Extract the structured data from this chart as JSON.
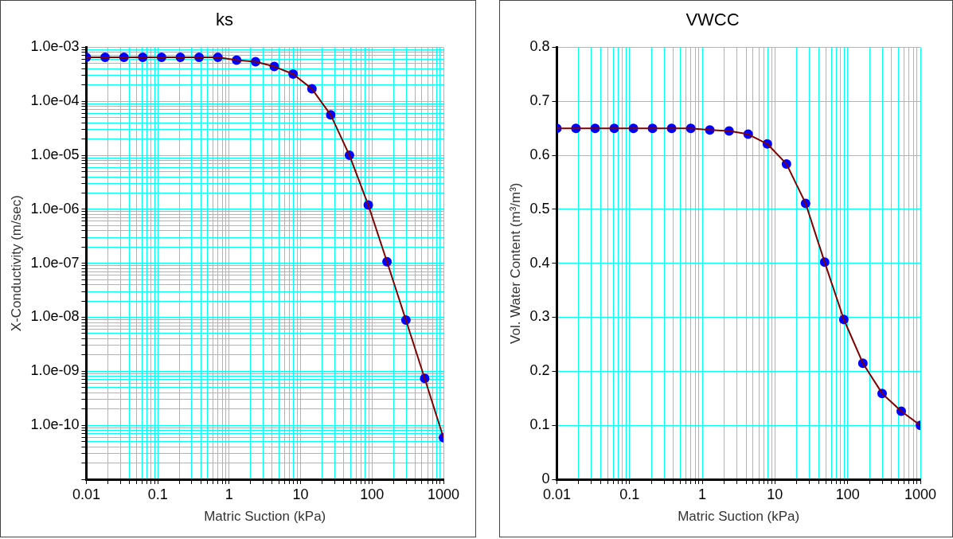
{
  "chart_data": [
    {
      "type": "line",
      "title": "ks",
      "xlabel": "Matric Suction (kPa)",
      "ylabel": "X-Conductivity (m/sec)",
      "log": "xy",
      "grid": true,
      "legend": false,
      "line_style": "solid",
      "xlim": [
        0.01,
        1000
      ],
      "ylim": [
        1e-11,
        0.001
      ],
      "xticks": [
        0.01,
        {
          "value": 0.02,
          "label": null
        },
        {
          "value": 0.03,
          "label": null
        },
        {
          "value": 0.04,
          "label": null
        },
        {
          "value": 0.05,
          "label": null
        },
        {
          "value": 0.06,
          "label": null
        },
        {
          "value": 0.07,
          "label": null
        },
        {
          "value": 0.08,
          "label": null
        },
        {
          "value": 0.09,
          "label": null
        },
        0.1,
        {
          "value": 0.2,
          "label": null
        },
        {
          "value": 0.3,
          "label": null
        },
        {
          "value": 0.4,
          "label": null
        },
        {
          "value": 0.5,
          "label": null
        },
        {
          "value": 0.6,
          "label": null
        },
        {
          "value": 0.7,
          "label": null
        },
        {
          "value": 0.8,
          "label": null
        },
        {
          "value": 0.9,
          "label": null
        },
        1,
        {
          "value": 2,
          "label": null
        },
        {
          "value": 3,
          "label": null
        },
        {
          "value": 4,
          "label": null
        },
        {
          "value": 5,
          "label": null
        },
        {
          "value": 6,
          "label": null
        },
        {
          "value": 7,
          "label": null
        },
        {
          "value": 8,
          "label": null
        },
        {
          "value": 9,
          "label": null
        },
        10,
        {
          "value": 20,
          "label": null
        },
        {
          "value": 30,
          "label": null
        },
        {
          "value": 40,
          "label": null
        },
        {
          "value": 50,
          "label": null
        },
        {
          "value": 60,
          "label": null
        },
        {
          "value": 70,
          "label": null
        },
        {
          "value": 80,
          "label": null
        },
        {
          "value": 90,
          "label": null
        },
        100,
        {
          "value": 200,
          "label": null
        },
        {
          "value": 300,
          "label": null
        },
        {
          "value": 400,
          "label": null
        },
        {
          "value": 500,
          "label": null
        },
        {
          "value": 600,
          "label": null
        },
        {
          "value": 700,
          "label": null
        },
        {
          "value": 800,
          "label": null
        },
        {
          "value": 900,
          "label": null
        },
        1000
      ],
      "yticks": [
        {
          "value": 1e-11,
          "label": null
        },
        {
          "value": 2e-11,
          "label": null
        },
        {
          "value": 3e-11,
          "label": null
        },
        {
          "value": 4e-11,
          "label": null
        },
        {
          "value": 5e-11,
          "label": null
        },
        {
          "value": 6e-11,
          "label": null
        },
        {
          "value": 7e-11,
          "label": null
        },
        {
          "value": 8e-11,
          "label": null
        },
        {
          "value": 9e-11,
          "label": null
        },
        {
          "value": 1e-10,
          "label": "1.0e-10"
        },
        {
          "value": 2e-10,
          "label": null
        },
        {
          "value": 3e-10,
          "label": null
        },
        {
          "value": 4e-10,
          "label": null
        },
        {
          "value": 5e-10,
          "label": null
        },
        {
          "value": 6e-10,
          "label": null
        },
        {
          "value": 7e-10,
          "label": null
        },
        {
          "value": 8e-10,
          "label": null
        },
        {
          "value": 9e-10,
          "label": null
        },
        {
          "value": 1e-09,
          "label": "1.0e-09"
        },
        {
          "value": 2e-09,
          "label": null
        },
        {
          "value": 3e-09,
          "label": null
        },
        {
          "value": 4e-09,
          "label": null
        },
        {
          "value": 5e-09,
          "label": null
        },
        {
          "value": 6e-09,
          "label": null
        },
        {
          "value": 7e-09,
          "label": null
        },
        {
          "value": 8e-09,
          "label": null
        },
        {
          "value": 9e-09,
          "label": null
        },
        {
          "value": 1e-08,
          "label": "1.0e-08"
        },
        {
          "value": 2e-08,
          "label": null
        },
        {
          "value": 3e-08,
          "label": null
        },
        {
          "value": 4e-08,
          "label": null
        },
        {
          "value": 5e-08,
          "label": null
        },
        {
          "value": 6e-08,
          "label": null
        },
        {
          "value": 7e-08,
          "label": null
        },
        {
          "value": 8e-08,
          "label": null
        },
        {
          "value": 9e-08,
          "label": null
        },
        {
          "value": 1e-07,
          "label": "1.0e-07"
        },
        {
          "value": 2e-07,
          "label": null
        },
        {
          "value": 3e-07,
          "label": null
        },
        {
          "value": 4e-07,
          "label": null
        },
        {
          "value": 5e-07,
          "label": null
        },
        {
          "value": 6e-07,
          "label": null
        },
        {
          "value": 7e-07,
          "label": null
        },
        {
          "value": 8e-07,
          "label": null
        },
        {
          "value": 9e-07,
          "label": null
        },
        {
          "value": 1e-06,
          "label": "1.0e-06"
        },
        {
          "value": 2e-06,
          "label": null
        },
        {
          "value": 3e-06,
          "label": null
        },
        {
          "value": 4e-06,
          "label": null
        },
        {
          "value": 5e-06,
          "label": null
        },
        {
          "value": 6e-06,
          "label": null
        },
        {
          "value": 7e-06,
          "label": null
        },
        {
          "value": 8e-06,
          "label": null
        },
        {
          "value": 9e-06,
          "label": null
        },
        {
          "value": 1e-05,
          "label": "1.0e-05"
        },
        {
          "value": 2e-05,
          "label": null
        },
        {
          "value": 3e-05,
          "label": null
        },
        {
          "value": 4e-05,
          "label": null
        },
        {
          "value": 5e-05,
          "label": null
        },
        {
          "value": 6e-05,
          "label": null
        },
        {
          "value": 7e-05,
          "label": null
        },
        {
          "value": 8e-05,
          "label": null
        },
        {
          "value": 9e-05,
          "label": null
        },
        {
          "value": 0.0001,
          "label": "1.0e-04"
        },
        {
          "value": 0.0002,
          "label": null
        },
        {
          "value": 0.0003,
          "label": null
        },
        {
          "value": 0.0004,
          "label": null
        },
        {
          "value": 0.0005,
          "label": null
        },
        {
          "value": 0.0006,
          "label": null
        },
        {
          "value": 0.0007,
          "label": null
        },
        {
          "value": 0.0008,
          "label": null
        },
        {
          "value": 0.0009,
          "label": null
        },
        {
          "value": 0.001,
          "label": "1.0e-03"
        }
      ],
      "x": [
        0.01,
        0.0183,
        0.0336,
        0.0616,
        0.113,
        0.207,
        0.379,
        0.695,
        1.27,
        2.34,
        4.28,
        7.85,
        14.4,
        26.4,
        48.3,
        88.6,
        162,
        298,
        546,
        1000
      ],
      "series": [
        {
          "type": "line",
          "marker": "none",
          "color": "#800000",
          "values": [
            0.00065,
            0.00065,
            0.00065,
            0.00065,
            0.00065,
            0.00065,
            0.00065,
            0.00065,
            0.00058,
            0.00054,
            0.00044,
            0.00032,
            0.00017,
            5.6e-05,
            1e-05,
            1.2e-06,
            1.07e-07,
            8.9e-09,
            7.4e-10,
            5.9e-11
          ]
        },
        {
          "type": "scatter",
          "marker": "circle",
          "color": "#0000ff",
          "values": [
            0.00065,
            0.00065,
            0.00065,
            0.00065,
            0.00065,
            0.00065,
            0.00065,
            0.00065,
            0.00058,
            0.00054,
            0.00044,
            0.00032,
            0.00017,
            5.6e-05,
            1e-05,
            1.2e-06,
            1.07e-07,
            8.9e-09,
            7.4e-10,
            5.9e-11
          ]
        }
      ]
    },
    {
      "type": "line",
      "title": "VWCC",
      "xlabel": "Matric Suction (kPa)",
      "ylabel": "Vol. Water Content (m³/m³)",
      "log": "x",
      "grid": true,
      "legend": false,
      "line_style": "solid",
      "xlim": [
        0.01,
        1000
      ],
      "ylim": [
        0,
        0.8
      ],
      "xticks": [
        0.01,
        {
          "value": 0.02,
          "label": null
        },
        {
          "value": 0.03,
          "label": null
        },
        {
          "value": 0.04,
          "label": null
        },
        {
          "value": 0.05,
          "label": null
        },
        {
          "value": 0.06,
          "label": null
        },
        {
          "value": 0.07,
          "label": null
        },
        {
          "value": 0.08,
          "label": null
        },
        {
          "value": 0.09,
          "label": null
        },
        0.1,
        {
          "value": 0.2,
          "label": null
        },
        {
          "value": 0.3,
          "label": null
        },
        {
          "value": 0.4,
          "label": null
        },
        {
          "value": 0.5,
          "label": null
        },
        {
          "value": 0.6,
          "label": null
        },
        {
          "value": 0.7,
          "label": null
        },
        {
          "value": 0.8,
          "label": null
        },
        {
          "value": 0.9,
          "label": null
        },
        1,
        {
          "value": 2,
          "label": null
        },
        {
          "value": 3,
          "label": null
        },
        {
          "value": 4,
          "label": null
        },
        {
          "value": 5,
          "label": null
        },
        {
          "value": 6,
          "label": null
        },
        {
          "value": 7,
          "label": null
        },
        {
          "value": 8,
          "label": null
        },
        {
          "value": 9,
          "label": null
        },
        10,
        {
          "value": 20,
          "label": null
        },
        {
          "value": 30,
          "label": null
        },
        {
          "value": 40,
          "label": null
        },
        {
          "value": 50,
          "label": null
        },
        {
          "value": 60,
          "label": null
        },
        {
          "value": 70,
          "label": null
        },
        {
          "value": 80,
          "label": null
        },
        {
          "value": 90,
          "label": null
        },
        100,
        {
          "value": 200,
          "label": null
        },
        {
          "value": 300,
          "label": null
        },
        {
          "value": 400,
          "label": null
        },
        {
          "value": 500,
          "label": null
        },
        {
          "value": 600,
          "label": null
        },
        {
          "value": 700,
          "label": null
        },
        {
          "value": 800,
          "label": null
        },
        {
          "value": 900,
          "label": null
        },
        1000
      ],
      "yticks": [
        0,
        0.1,
        0.2,
        0.3,
        0.4,
        0.5,
        0.6,
        0.7,
        0.8
      ],
      "x": [
        0.01,
        0.0183,
        0.0336,
        0.0616,
        0.113,
        0.207,
        0.379,
        0.695,
        1.27,
        2.34,
        4.28,
        7.85,
        14.4,
        26.4,
        48.3,
        88.6,
        162,
        298,
        546,
        1000
      ],
      "series": [
        {
          "type": "line",
          "marker": "none",
          "color": "#800000",
          "values": [
            0.65,
            0.65,
            0.65,
            0.65,
            0.65,
            0.65,
            0.65,
            0.65,
            0.647,
            0.645,
            0.639,
            0.621,
            0.584,
            0.511,
            0.402,
            0.296,
            0.215,
            0.159,
            0.126,
            0.1
          ]
        },
        {
          "type": "scatter",
          "marker": "circle",
          "color": "#0000ff",
          "values": [
            0.65,
            0.65,
            0.65,
            0.65,
            0.65,
            0.65,
            0.65,
            0.65,
            0.647,
            0.645,
            0.639,
            0.621,
            0.584,
            0.511,
            0.402,
            0.296,
            0.215,
            0.159,
            0.126,
            0.1
          ]
        }
      ]
    }
  ]
}
